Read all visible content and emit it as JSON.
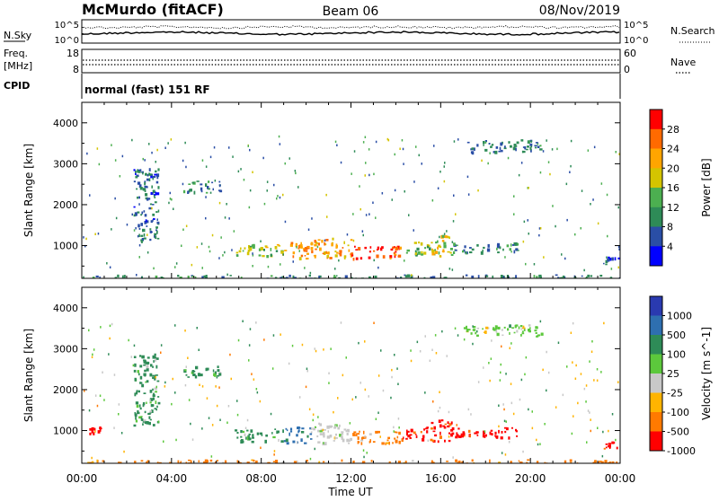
{
  "header": {
    "station": "McMurdo (fitACF)",
    "beam": "Beam 06",
    "date": "08/Nov/2019"
  },
  "noise_panel": {
    "left_label": "N.Sky",
    "right_label": "N.Search",
    "left_ticks": [
      "10^5",
      "10^0"
    ],
    "right_ticks": [
      "10^5",
      "10^0"
    ]
  },
  "freq_panel": {
    "label_line1": "Freq.",
    "label_line2": "[MHz]",
    "left_ticks": [
      "18",
      "8"
    ],
    "right_label": "Nave",
    "right_ticks": [
      "60",
      "0"
    ]
  },
  "cpid_panel": {
    "label": "CPID",
    "text": "normal (fast) 151 RF"
  },
  "x_axis": {
    "label": "Time UT",
    "ticks": [
      "00:00",
      "04:00",
      "08:00",
      "12:00",
      "16:00",
      "20:00",
      "00:00"
    ],
    "range_hours": [
      0,
      24
    ]
  },
  "colors": {
    "axis": "#000000",
    "grid_red": "#ff0000"
  },
  "chart_data": [
    {
      "type": "heatmap",
      "name": "power",
      "ylabel": "Slant Range [km]",
      "y_ticks": [
        "1000",
        "2000",
        "3000",
        "4000"
      ],
      "ylim": [
        200,
        4500
      ],
      "colorbar": {
        "label": "Power [dB]",
        "ticks": [
          "4",
          "8",
          "12",
          "16",
          "20",
          "24",
          "28"
        ],
        "range": [
          0,
          32
        ],
        "colors": [
          "#0000ff",
          "#2a4ea6",
          "#2e8b57",
          "#4caf50",
          "#d4c400",
          "#ffa500",
          "#ff6a00",
          "#ff0000"
        ]
      },
      "regions": [
        {
          "t": [
            0.0,
            24.0
          ],
          "r": [
            200,
            300
          ],
          "v": 9
        },
        {
          "t": [
            2.3,
            3.4
          ],
          "r": [
            1100,
            2900
          ],
          "v": 7
        },
        {
          "t": [
            4.5,
            6.2
          ],
          "r": [
            2300,
            2600
          ],
          "v": 9
        },
        {
          "t": [
            6.8,
            9.0
          ],
          "r": [
            750,
            1050
          ],
          "v": 16
        },
        {
          "t": [
            9.0,
            10.2
          ],
          "r": [
            700,
            1100
          ],
          "v": 24
        },
        {
          "t": [
            10.2,
            12.0
          ],
          "r": [
            700,
            1200
          ],
          "v": 22
        },
        {
          "t": [
            12.0,
            14.2
          ],
          "r": [
            700,
            1000
          ],
          "v": 28
        },
        {
          "t": [
            14.2,
            15.5
          ],
          "r": [
            800,
            1100
          ],
          "v": 14
        },
        {
          "t": [
            15.5,
            16.5
          ],
          "r": [
            750,
            1300
          ],
          "v": 18
        },
        {
          "t": [
            16.5,
            19.5
          ],
          "r": [
            850,
            1100
          ],
          "v": 9
        },
        {
          "t": [
            17.0,
            20.5
          ],
          "r": [
            3300,
            3600
          ],
          "v": 9
        },
        {
          "t": [
            23.2,
            23.9
          ],
          "r": [
            550,
            750
          ],
          "v": 6
        }
      ]
    },
    {
      "type": "heatmap",
      "name": "velocity",
      "ylabel": "Slant Range [km]",
      "y_ticks": [
        "1000",
        "2000",
        "3000",
        "4000"
      ],
      "ylim": [
        200,
        4500
      ],
      "colorbar": {
        "label": "Velocity [m s^-1]",
        "ticks": [
          "1000",
          "500",
          "100",
          "25",
          "-25",
          "-100",
          "-500",
          "-1000"
        ],
        "colors": [
          "#2a3ab0",
          "#2e6fb0",
          "#2e8b57",
          "#5cc83c",
          "#c8c8c8",
          "#ffb400",
          "#ff7a00",
          "#ff0000"
        ]
      },
      "regions": [
        {
          "t": [
            0.0,
            24.0
          ],
          "r": [
            200,
            300
          ],
          "v": -100
        },
        {
          "t": [
            0.3,
            0.8
          ],
          "r": [
            950,
            1100
          ],
          "v": -500
        },
        {
          "t": [
            2.3,
            3.4
          ],
          "r": [
            1100,
            2900
          ],
          "v": 100
        },
        {
          "t": [
            4.5,
            6.2
          ],
          "r": [
            2300,
            2600
          ],
          "v": 100
        },
        {
          "t": [
            6.8,
            9.0
          ],
          "r": [
            750,
            1050
          ],
          "v": 100
        },
        {
          "t": [
            9.0,
            10.2
          ],
          "r": [
            700,
            1100
          ],
          "v": 500
        },
        {
          "t": [
            10.2,
            12.0
          ],
          "r": [
            700,
            1200
          ],
          "v": 0
        },
        {
          "t": [
            12.0,
            14.2
          ],
          "r": [
            700,
            1000
          ],
          "v": -100
        },
        {
          "t": [
            14.2,
            15.5
          ],
          "r": [
            800,
            1100
          ],
          "v": -500
        },
        {
          "t": [
            15.5,
            16.5
          ],
          "r": [
            750,
            1300
          ],
          "v": -500
        },
        {
          "t": [
            16.5,
            19.5
          ],
          "r": [
            850,
            1100
          ],
          "v": -500
        },
        {
          "t": [
            17.0,
            20.5
          ],
          "r": [
            3300,
            3600
          ],
          "v": 25
        },
        {
          "t": [
            23.2,
            23.9
          ],
          "r": [
            550,
            750
          ],
          "v": -500
        }
      ]
    }
  ]
}
